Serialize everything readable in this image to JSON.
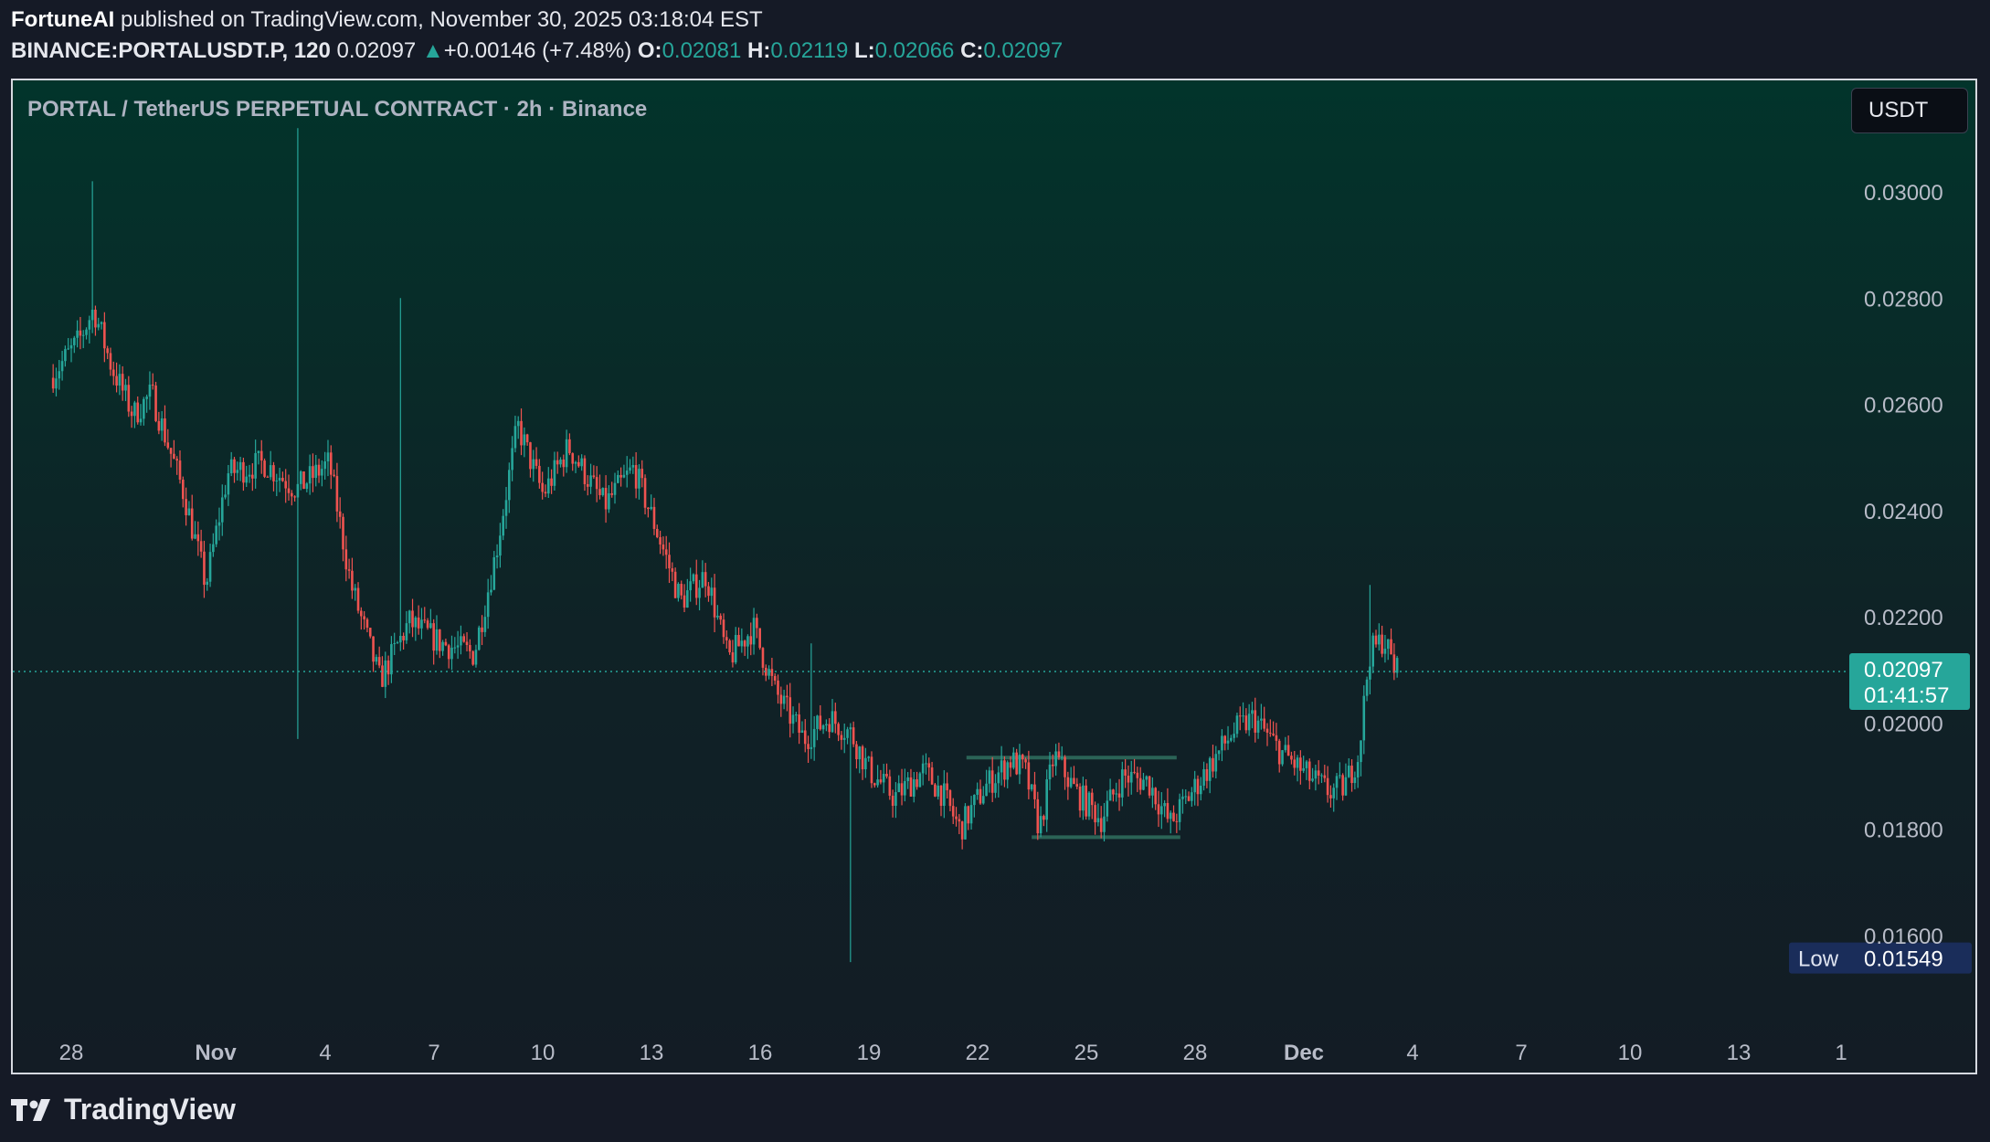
{
  "header": {
    "author": "FortuneAI",
    "published_text": "published on TradingView.com, November 30, 2025 03:18:04 EST",
    "symbol": "BINANCE:PORTALUSDT.P, 120",
    "last": "0.02097",
    "change": "+0.00146 (+7.48%)",
    "o_label": "O:",
    "o_value": "0.02081",
    "h_label": "H:",
    "h_value": "0.02119",
    "l_label": "L:",
    "l_value": "0.02066",
    "c_label": "C:",
    "c_value": "0.02097"
  },
  "legend": "PORTAL / TetherUS PERPETUAL CONTRACT · 2h · Binance",
  "currency_button": "USDT",
  "footer": {
    "brand": "TradingView"
  },
  "colors": {
    "up": "#26a69a",
    "down": "#ef5350",
    "background": "#151a26"
  },
  "chart_data": {
    "type": "candlestick",
    "timeframe": "2h",
    "y_ticks": [
      "0.01600",
      "0.01800",
      "0.02000",
      "0.02200",
      "0.02400",
      "0.02600",
      "0.02800",
      "0.03000"
    ],
    "y_range": [
      0.0145,
      0.032
    ],
    "x_ticks": [
      "28",
      "Nov",
      "4",
      "7",
      "10",
      "13",
      "16",
      "19",
      "22",
      "25",
      "28",
      "Dec",
      "4",
      "7",
      "10",
      "13",
      "1"
    ],
    "current_price": "0.02097",
    "countdown": "01:41:57",
    "low_label": "Low",
    "low_value": "0.01549",
    "key_levels": [
      {
        "from_day": 24.7,
        "to_day": 30.5,
        "price": 0.01935
      },
      {
        "from_day": 26.5,
        "to_day": 30.6,
        "price": 0.01785
      }
    ],
    "price_path_approx": [
      [
        -0.5,
        0.0265
      ],
      [
        0.3,
        0.0272
      ],
      [
        0.7,
        0.0278
      ],
      [
        1.2,
        0.0267
      ],
      [
        1.8,
        0.0258
      ],
      [
        2.3,
        0.0262
      ],
      [
        3.2,
        0.0243
      ],
      [
        3.8,
        0.0226
      ],
      [
        4.4,
        0.0247
      ],
      [
        5.4,
        0.0249
      ],
      [
        6.3,
        0.0244
      ],
      [
        7.2,
        0.0249
      ],
      [
        7.8,
        0.0226
      ],
      [
        8.6,
        0.0208
      ],
      [
        9.4,
        0.0219
      ],
      [
        10.3,
        0.0215
      ],
      [
        11.2,
        0.0213
      ],
      [
        11.8,
        0.0232
      ],
      [
        12.4,
        0.0256
      ],
      [
        13.1,
        0.0243
      ],
      [
        13.8,
        0.0252
      ],
      [
        14.8,
        0.0241
      ],
      [
        15.6,
        0.0248
      ],
      [
        16.2,
        0.0237
      ],
      [
        16.9,
        0.0223
      ],
      [
        17.6,
        0.0228
      ],
      [
        18.2,
        0.0212
      ],
      [
        18.9,
        0.0218
      ],
      [
        19.5,
        0.0206
      ],
      [
        20.3,
        0.0197
      ],
      [
        21.0,
        0.0201
      ],
      [
        21.6,
        0.0198
      ],
      [
        22.1,
        0.0191
      ],
      [
        22.8,
        0.0186
      ],
      [
        23.6,
        0.0191
      ],
      [
        24.1,
        0.0187
      ],
      [
        24.6,
        0.018
      ],
      [
        25.3,
        0.0188
      ],
      [
        26.0,
        0.0193
      ],
      [
        26.4,
        0.0191
      ],
      [
        26.8,
        0.018
      ],
      [
        27.2,
        0.0194
      ],
      [
        27.8,
        0.0187
      ],
      [
        28.5,
        0.0182
      ],
      [
        29.1,
        0.019
      ],
      [
        29.8,
        0.0189
      ],
      [
        30.4,
        0.0181
      ],
      [
        31.0,
        0.0187
      ],
      [
        31.7,
        0.0194
      ],
      [
        32.1,
        0.0198
      ],
      [
        32.7,
        0.0201
      ],
      [
        33.4,
        0.0195
      ],
      [
        34.2,
        0.019
      ],
      [
        34.8,
        0.0187
      ],
      [
        35.2,
        0.0188
      ],
      [
        35.6,
        0.0194
      ],
      [
        35.9,
        0.0213
      ],
      [
        36.3,
        0.0216
      ],
      [
        36.6,
        0.021
      ]
    ]
  }
}
